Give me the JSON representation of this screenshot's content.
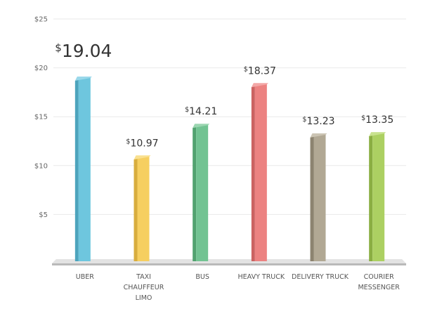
{
  "chart_data": {
    "type": "bar",
    "title": "",
    "xlabel": "",
    "ylabel": "",
    "ylim": [
      0,
      25
    ],
    "y_ticks": [
      "$25",
      "$20",
      "$15",
      "$10",
      "$5"
    ],
    "y_tick_values": [
      25,
      20,
      15,
      10,
      5
    ],
    "grid": true,
    "categories": [
      [
        "UBER"
      ],
      [
        "TAXI",
        "CHAUFFEUR",
        "LIMO"
      ],
      [
        "BUS"
      ],
      [
        "HEAVY TRUCK"
      ],
      [
        "DELIVERY TRUCK"
      ],
      [
        "COURIER",
        "MESSENGER"
      ]
    ],
    "values": [
      19.04,
      10.97,
      14.21,
      18.37,
      13.23,
      13.35
    ],
    "value_labels": [
      "19.04",
      "10.97",
      "14.21",
      "18.37",
      "13.23",
      "13.35"
    ],
    "currency_symbol": "$",
    "colors": [
      "#6ec6de",
      "#f6cf60",
      "#72c392",
      "#ec8281",
      "#b1a894",
      "#acd062"
    ],
    "side_colors": [
      "#4da4bd",
      "#d8ad3e",
      "#52a270",
      "#cb6261",
      "#8c8370",
      "#8aae42"
    ],
    "top_colors": [
      "#9ad8ea",
      "#f9e08f",
      "#9bd6b1",
      "#f3a7a6",
      "#cbc4b3",
      "#c8e28e"
    ]
  }
}
